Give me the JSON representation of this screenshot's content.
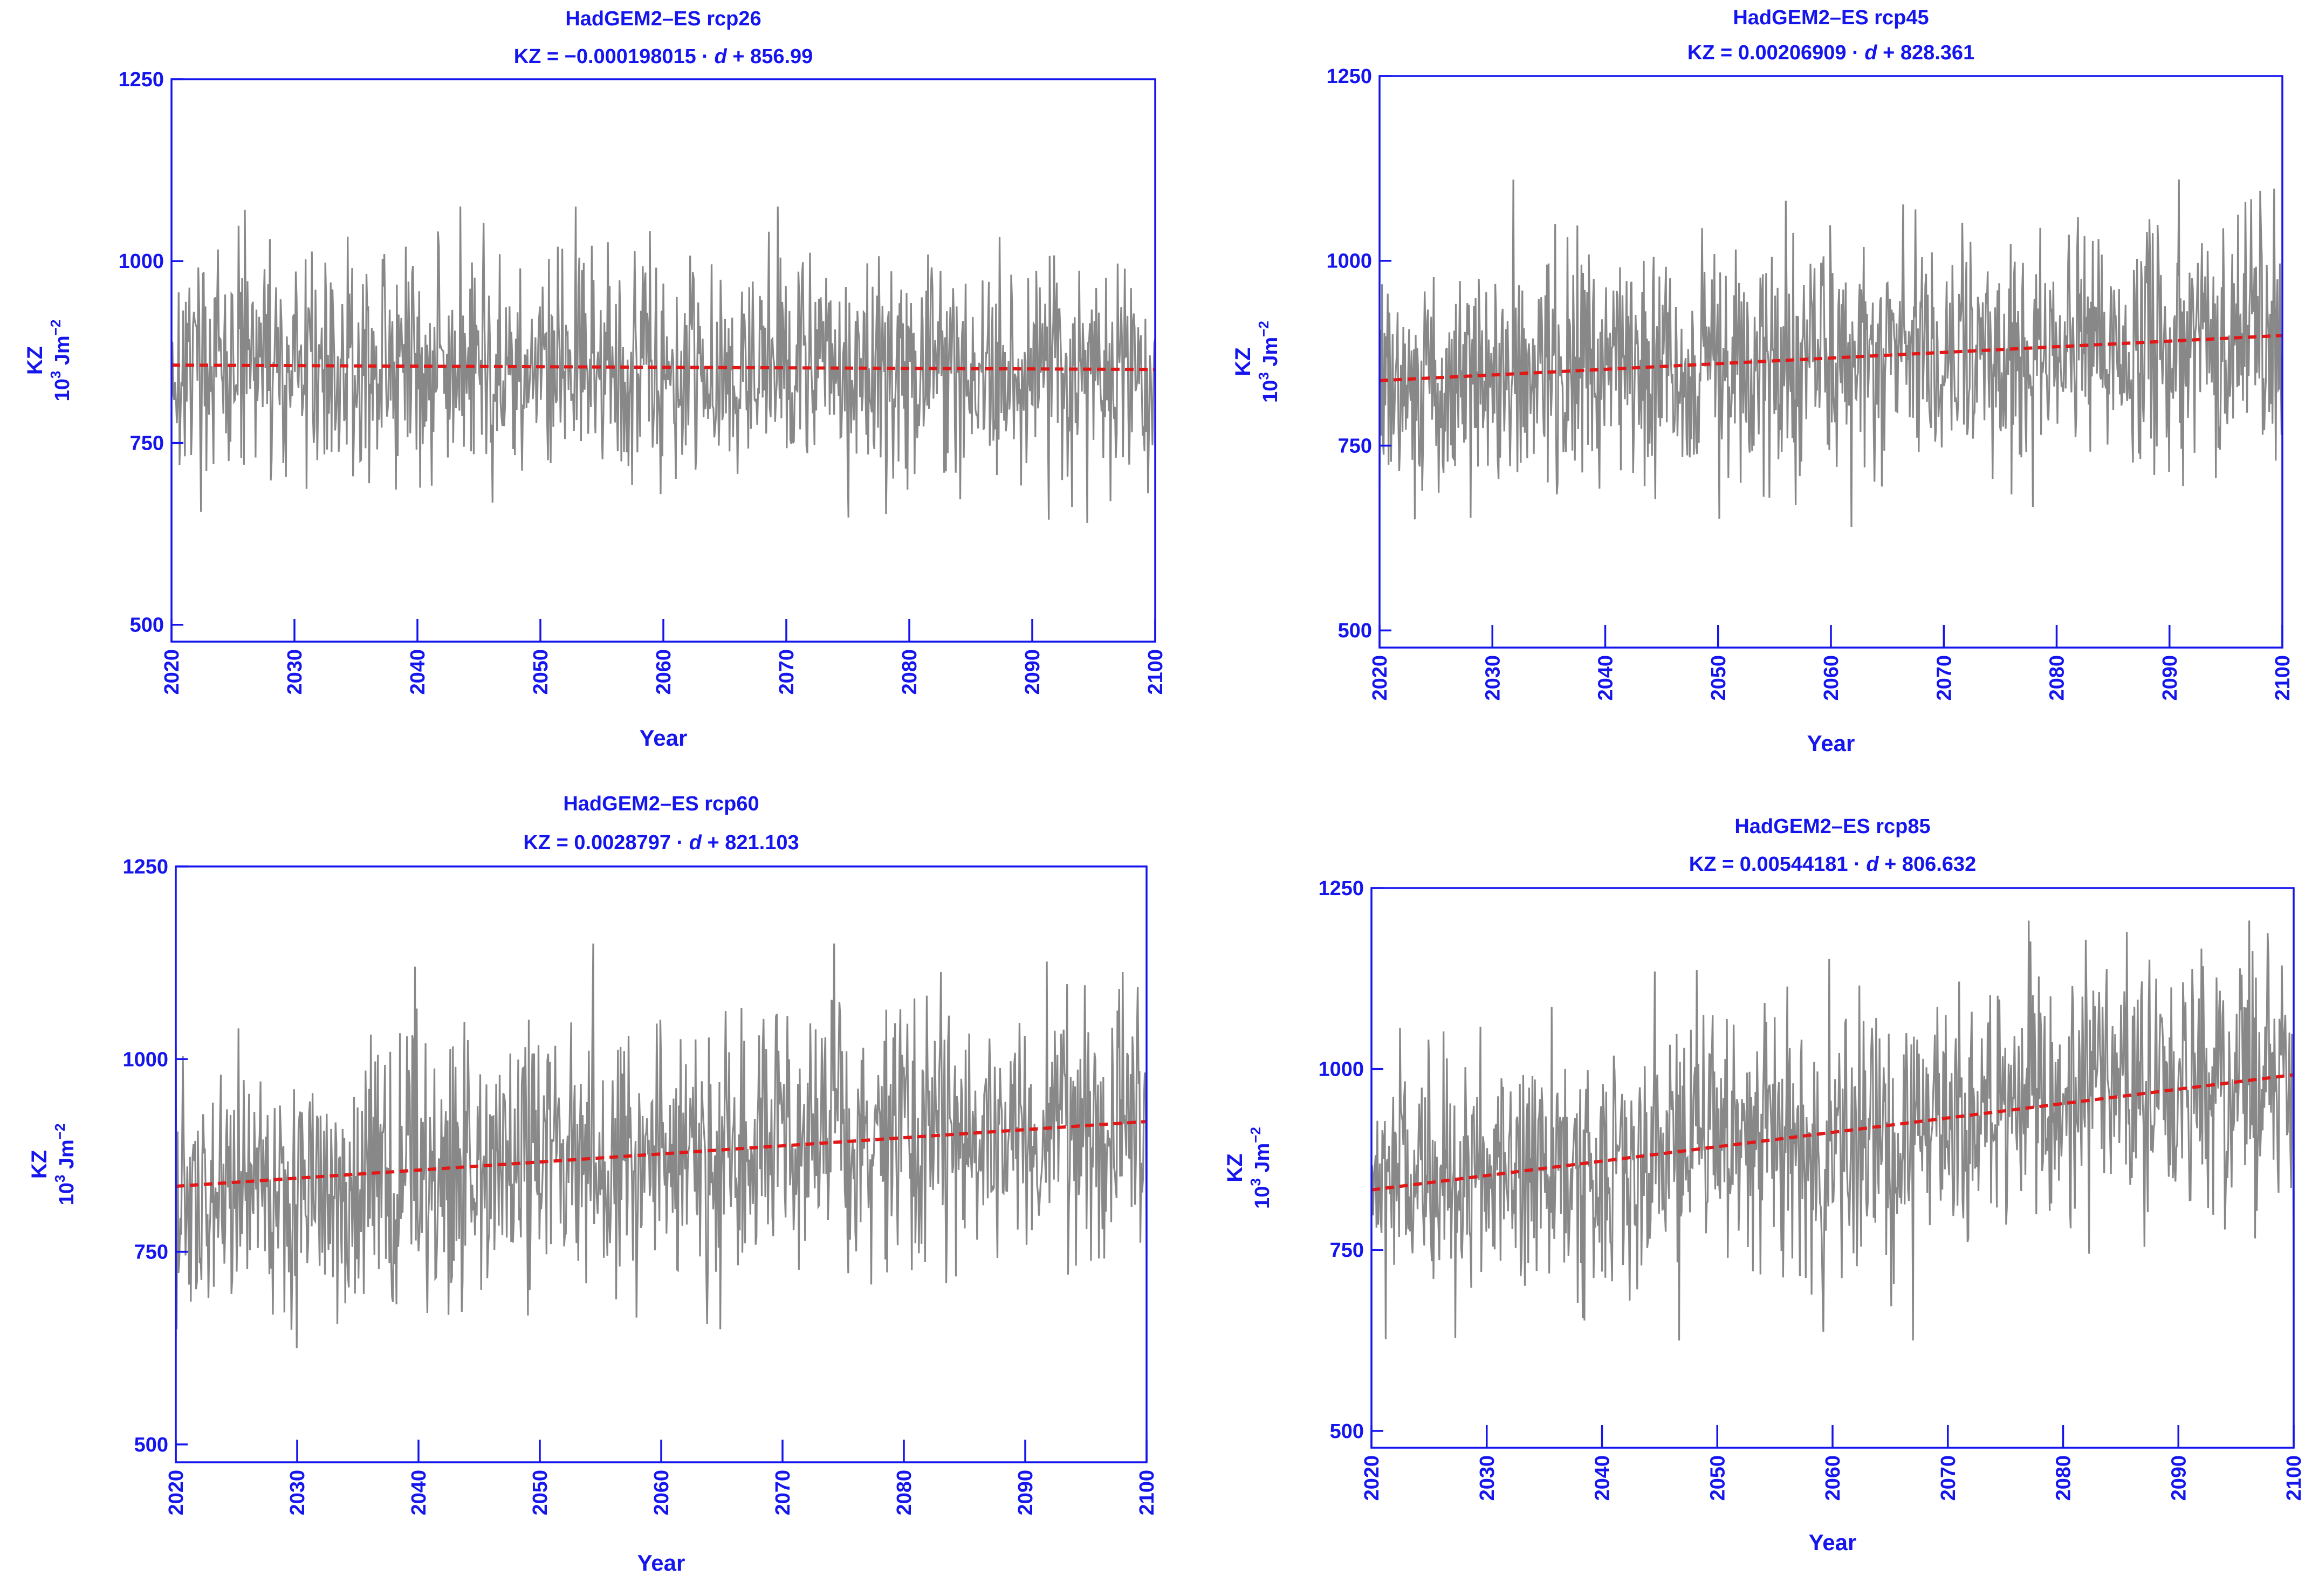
{
  "chart_data": [
    {
      "type": "line",
      "title": "HadGEM2–ES  rcp26",
      "equation": {
        "lhs": "KZ = ",
        "coef": "−0.000198015",
        "mid": " · ",
        "var": "d",
        "rhs": " + 856.99"
      },
      "xlabel": "Year",
      "ylabel": "KZ",
      "ylabel_unit": {
        "base": "10",
        "sup1": "3",
        "mid": " Jm",
        "sup2": "−2"
      },
      "xlim": [
        2020,
        2100
      ],
      "ylim": [
        500,
        1250
      ],
      "x_ticks": [
        "2020",
        "2030",
        "2040",
        "2050",
        "2060",
        "2070",
        "2080",
        "2090",
        "2100"
      ],
      "y_ticks": [
        "500",
        "750",
        "1000",
        "1250"
      ],
      "colors": {
        "axis": "#1515ee",
        "series": "#888888",
        "trend": "#e01818"
      },
      "series": [
        {
          "values_note_x": "years",
          "x_start": 2020,
          "x_end": 2100,
          "band": {
            "lo": 640,
            "hi": 1075
          },
          "trend_x": [
            2020,
            2100
          ],
          "trend_y": [
            857,
            851
          ],
          "mean": [
            857,
            851
          ],
          "spread": 95
        }
      ]
    },
    {
      "type": "line",
      "title": "HadGEM2–ES  rcp45",
      "equation": {
        "lhs": "KZ = ",
        "coef": "0.00206909",
        "mid": " · ",
        "var": "d",
        "rhs": " + 828.361"
      },
      "xlabel": "Year",
      "ylabel": "KZ",
      "ylabel_unit": {
        "base": "10",
        "sup1": "3",
        "mid": " Jm",
        "sup2": "−2"
      },
      "xlim": [
        2020,
        2100
      ],
      "ylim": [
        500,
        1250
      ],
      "x_ticks": [
        "2020",
        "2030",
        "2040",
        "2050",
        "2060",
        "2070",
        "2080",
        "2090",
        "2100"
      ],
      "y_ticks": [
        "500",
        "750",
        "1000",
        "1250"
      ],
      "colors": {
        "axis": "#1515ee",
        "series": "#888888",
        "trend": "#e01818"
      },
      "series": [
        {
          "x_start": 2020,
          "x_end": 2100,
          "band": {
            "lo": 640,
            "hi": 1110
          },
          "trend_x": [
            2020,
            2100
          ],
          "trend_y": [
            838,
            899
          ],
          "mean": [
            838,
            899
          ],
          "spread": 100
        }
      ]
    },
    {
      "type": "line",
      "title": "HadGEM2–ES  rcp60",
      "equation": {
        "lhs": "KZ = ",
        "coef": "0.0028797",
        "mid": " · ",
        "var": "d",
        "rhs": " + 821.103"
      },
      "xlabel": "Year",
      "ylabel": "KZ",
      "ylabel_unit": {
        "base": "10",
        "sup1": "3",
        "mid": " Jm",
        "sup2": "−2"
      },
      "xlim": [
        2020,
        2100
      ],
      "ylim": [
        500,
        1250
      ],
      "x_ticks": [
        "2020",
        "2030",
        "2040",
        "2050",
        "2060",
        "2070",
        "2080",
        "2090",
        "2100"
      ],
      "y_ticks": [
        "500",
        "750",
        "1000",
        "1250"
      ],
      "colors": {
        "axis": "#1515ee",
        "series": "#888888",
        "trend": "#e01818"
      },
      "series": [
        {
          "x_start": 2020,
          "x_end": 2100,
          "band": {
            "lo": 625,
            "hi": 1150
          },
          "trend_x": [
            2020,
            2100
          ],
          "trend_y": [
            835,
            919
          ],
          "mean": [
            835,
            919
          ],
          "spread": 105
        }
      ]
    },
    {
      "type": "line",
      "title": "HadGEM2–ES  rcp85",
      "equation": {
        "lhs": "KZ = ",
        "coef": "0.00544181",
        "mid": " · ",
        "var": "d",
        "rhs": " + 806.632"
      },
      "xlabel": "Year",
      "ylabel": "KZ",
      "ylabel_unit": {
        "base": "10",
        "sup1": "3",
        "mid": " Jm",
        "sup2": "−2"
      },
      "xlim": [
        2020,
        2100
      ],
      "ylim": [
        500,
        1250
      ],
      "x_ticks": [
        "2020",
        "2030",
        "2040",
        "2050",
        "2060",
        "2070",
        "2080",
        "2090",
        "2100"
      ],
      "y_ticks": [
        "500",
        "750",
        "1000",
        "1250"
      ],
      "colors": {
        "axis": "#1515ee",
        "series": "#888888",
        "trend": "#e01818"
      },
      "series": [
        {
          "x_start": 2020,
          "x_end": 2100,
          "band": {
            "lo": 625,
            "hi": 1205
          },
          "trend_x": [
            2020,
            2100
          ],
          "trend_y": [
            833,
            992
          ],
          "mean": [
            833,
            992
          ],
          "spread": 110
        }
      ]
    }
  ]
}
